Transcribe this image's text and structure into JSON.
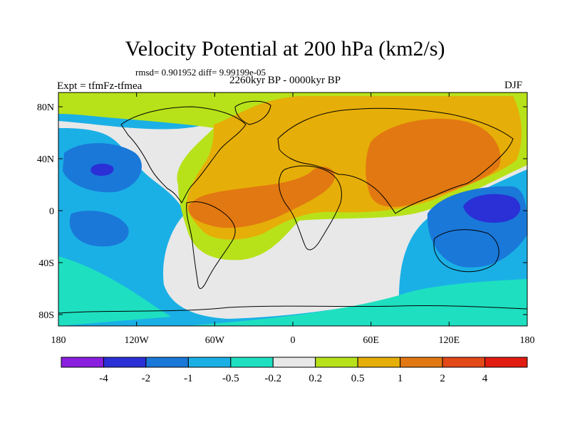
{
  "title": "Velocity Potential at 200 hPa (km2/s)",
  "stats": "rmsd= 0.901952 diff= 9.99199e-05",
  "left_label": "Expt = tfmFz-tfmea",
  "center_label": "2260kyr BP - 0000kyr BP",
  "right_label": "DJF",
  "lat_ticks": [
    "80N",
    "40N",
    "0",
    "40S",
    "80S"
  ],
  "lon_ticks": [
    "180",
    "120W",
    "60W",
    "0",
    "60E",
    "120E",
    "180"
  ],
  "colorbar": {
    "labels": [
      "-4",
      "-2",
      "-1",
      "-0.5",
      "-0.2",
      "0.2",
      "0.5",
      "1",
      "2",
      "4"
    ],
    "colors": [
      "#8a1fe0",
      "#2b2fd6",
      "#1a78d8",
      "#1ab0e6",
      "#1ee0c0",
      "#e8e8e8",
      "#b7e21a",
      "#e6ae08",
      "#e27812",
      "#e24818",
      "#e21b10"
    ]
  },
  "colors": {
    "ocean_fill": "#1ab0e6",
    "strong_negative": "#2b2fd6",
    "moderate_negative": "#1a78d8",
    "weak_negative": "#1ee0c0",
    "near_zero": "#e8e8e8",
    "weak_positive": "#b7e21a",
    "moderate_positive": "#e6ae08",
    "strong_positive": "#e27812"
  }
}
